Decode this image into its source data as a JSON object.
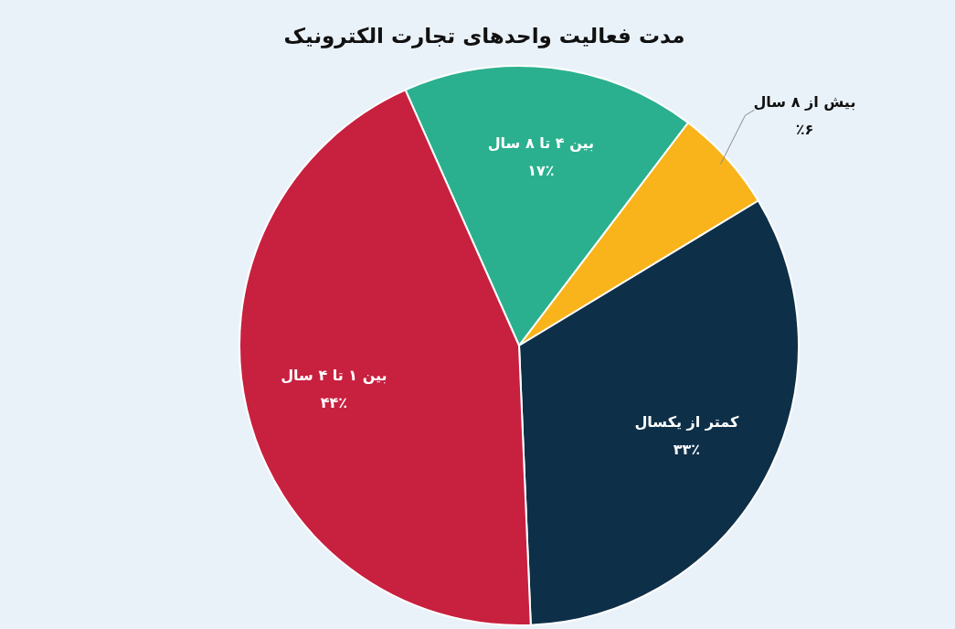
{
  "chart_data": {
    "type": "pie",
    "title": "مدت فعالیت واحدهای تجارت الکترونیک",
    "categories": [
      "بین ۴ تا ۸ سال",
      "بیش از ۸ سال",
      "کمتر از یکسال",
      "بین ۱ تا ۴ سال"
    ],
    "values": [
      17,
      6,
      33,
      44
    ],
    "value_labels": [
      "۱۷٪",
      "٪۶",
      "۳۳٪",
      "۴۴٪"
    ],
    "colors": [
      "#2bb08f",
      "#f9b31b",
      "#0e2f48",
      "#c8203f"
    ]
  }
}
